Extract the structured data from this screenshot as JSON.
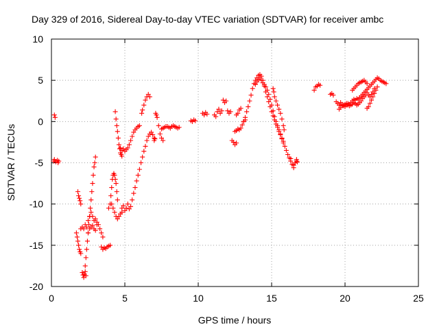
{
  "chart_data": {
    "type": "scatter",
    "title": "Day 329 of 2016, Sidereal Day-to-day VTEC variation (SDTVAR) for receiver ambc",
    "xlabel": "GPS time / hours",
    "ylabel": "SDTVAR / TECUs",
    "xlim": [
      0,
      25
    ],
    "ylim": [
      -20,
      10
    ],
    "xticks": [
      0,
      5,
      10,
      15,
      20,
      25
    ],
    "yticks": [
      -20,
      -15,
      -10,
      -5,
      0,
      5,
      10
    ],
    "grid": true,
    "marker": "plus",
    "color": "#ff0000",
    "series": [
      {
        "name": "SDTVAR",
        "segments": [
          {
            "x": [
              0.2,
              0.25
            ],
            "y": [
              0.8,
              0.5
            ]
          },
          {
            "x": [
              0.15,
              0.2,
              0.3,
              0.4,
              0.45,
              0.5
            ],
            "y": [
              -4.8,
              -4.6,
              -4.9,
              -4.7,
              -5.0,
              -4.8
            ]
          },
          {
            "x": [
              1.7,
              1.75,
              1.8,
              1.85,
              1.9,
              1.95,
              2.0
            ],
            "y": [
              -13.5,
              -14.0,
              -14.5,
              -15.0,
              -15.5,
              -15.8,
              -16.0
            ]
          },
          {
            "x": [
              1.8,
              1.85,
              1.9,
              1.95,
              2.0
            ],
            "y": [
              -8.5,
              -9.0,
              -9.3,
              -9.6,
              -10.0
            ]
          },
          {
            "x": [
              2.1,
              2.15,
              2.2,
              2.25,
              2.3,
              2.35
            ],
            "y": [
              -18.3,
              -18.6,
              -18.9,
              -18.5,
              -18.2,
              -18.7
            ]
          },
          {
            "x": [
              2.0,
              2.1,
              2.2,
              2.3,
              2.4,
              2.5,
              2.6
            ],
            "y": [
              -13.0,
              -12.8,
              -13.0,
              -12.5,
              -12.8,
              -12.0,
              -11.5
            ]
          },
          {
            "x": [
              2.3,
              2.35,
              2.4,
              2.45,
              2.5,
              2.55,
              2.6,
              2.65,
              2.7,
              2.75,
              2.8,
              2.85,
              2.9,
              2.95,
              3.0
            ],
            "y": [
              -17.5,
              -16.5,
              -15.5,
              -14.5,
              -13.5,
              -12.5,
              -11.5,
              -10.5,
              -9.5,
              -8.5,
              -7.5,
              -6.5,
              -5.5,
              -5.0,
              -4.3
            ]
          },
          {
            "x": [
              2.6,
              2.7,
              2.8,
              2.9,
              3.0,
              3.1,
              3.2,
              3.3,
              3.4,
              3.5
            ],
            "y": [
              -11.5,
              -11.0,
              -11.5,
              -12.0,
              -11.8,
              -12.2,
              -12.5,
              -13.0,
              -13.5,
              -14.0
            ]
          },
          {
            "x": [
              2.5,
              2.6,
              2.7,
              2.8,
              2.9,
              3.0,
              3.1
            ],
            "y": [
              -13.5,
              -13.0,
              -12.8,
              -12.6,
              -13.0,
              -13.2,
              -12.5
            ]
          },
          {
            "x": [
              3.4,
              3.5,
              3.6,
              3.7,
              3.8,
              3.9,
              4.0
            ],
            "y": [
              -15.2,
              -15.5,
              -15.3,
              -15.4,
              -15.2,
              -15.1,
              -15.0
            ]
          },
          {
            "x": [
              3.9,
              4.0,
              4.05,
              4.1,
              4.15,
              4.2,
              4.25,
              4.3,
              4.35,
              4.4,
              4.45,
              4.5
            ],
            "y": [
              -10.5,
              -10.0,
              -9.0,
              -8.0,
              -7.0,
              -6.5,
              -6.3,
              -6.5,
              -7.0,
              -7.5,
              -8.5,
              -9.5
            ]
          },
          {
            "x": [
              4.1,
              4.2,
              4.3,
              4.4,
              4.5,
              4.6,
              4.7,
              4.8
            ],
            "y": [
              -10.0,
              -10.5,
              -11.0,
              -11.5,
              -11.8,
              -11.5,
              -11.2,
              -11.0
            ]
          },
          {
            "x": [
              4.35,
              4.4,
              4.45,
              4.5,
              4.55,
              4.6,
              4.65,
              4.7,
              4.75,
              4.8
            ],
            "y": [
              1.2,
              0.3,
              -0.5,
              -1.2,
              -2.0,
              -2.8,
              -3.3,
              -3.8,
              -4.0,
              -4.2
            ]
          },
          {
            "x": [
              4.7,
              4.8,
              4.9,
              5.0,
              5.1,
              5.2,
              5.3,
              5.4,
              5.5,
              5.6,
              5.7,
              5.8,
              5.9,
              6.0
            ],
            "y": [
              -3.2,
              -3.5,
              -3.3,
              -3.6,
              -3.4,
              -3.2,
              -2.8,
              -2.3,
              -1.8,
              -1.3,
              -1.0,
              -0.8,
              -0.6,
              -0.5
            ]
          },
          {
            "x": [
              4.8,
              4.9,
              5.0,
              5.1,
              5.2,
              5.3,
              5.4,
              5.5,
              5.6,
              5.7,
              5.8,
              5.9,
              6.0,
              6.1,
              6.2,
              6.3,
              6.4,
              6.5,
              6.6,
              6.7,
              6.8,
              6.9,
              7.0
            ],
            "y": [
              -10.5,
              -10.2,
              -10.8,
              -10.5,
              -10.0,
              -10.6,
              -10.3,
              -9.5,
              -8.7,
              -8.0,
              -7.2,
              -6.5,
              -5.8,
              -5.0,
              -4.3,
              -3.6,
              -3.0,
              -2.3,
              -1.8,
              -1.5,
              -1.3,
              -1.6,
              -2.0
            ]
          },
          {
            "x": [
              6.15,
              6.2,
              6.3,
              6.4,
              6.5,
              6.6,
              6.7
            ],
            "y": [
              1.0,
              1.4,
              2.0,
              2.6,
              3.0,
              3.3,
              3.0
            ]
          },
          {
            "x": [
              7.0,
              7.05,
              7.1,
              7.15,
              7.2,
              7.3,
              7.4,
              7.5,
              7.6
            ],
            "y": [
              -2.3,
              -2.1,
              1.0,
              0.8,
              0.5,
              -0.5,
              -1.5,
              -2.0,
              -2.3
            ]
          },
          {
            "x": [
              7.5,
              7.6,
              7.7,
              7.8,
              7.9,
              8.0,
              8.1,
              8.2,
              8.3,
              8.4,
              8.5,
              8.6,
              8.7
            ],
            "y": [
              -0.9,
              -0.8,
              -0.7,
              -0.6,
              -0.6,
              -0.7,
              -0.8,
              -0.6,
              -0.5,
              -0.6,
              -0.7,
              -0.8,
              -0.7
            ]
          },
          {
            "x": [
              9.5,
              9.6,
              9.7,
              9.8
            ],
            "y": [
              0.1,
              0.0,
              0.2,
              0.1
            ]
          },
          {
            "x": [
              10.3,
              10.4,
              10.5,
              10.6
            ],
            "y": [
              1.0,
              0.8,
              1.1,
              0.9
            ]
          },
          {
            "x": [
              11.1,
              11.2,
              11.3,
              11.4,
              11.5,
              11.6
            ],
            "y": [
              0.8,
              0.6,
              1.2,
              1.5,
              1.0,
              1.3
            ]
          },
          {
            "x": [
              11.7,
              11.8,
              11.9
            ],
            "y": [
              2.6,
              2.3,
              2.5
            ]
          },
          {
            "x": [
              12.0,
              12.1,
              12.2
            ],
            "y": [
              1.3,
              1.0,
              1.2
            ]
          },
          {
            "x": [
              12.3,
              12.4,
              12.5,
              12.6
            ],
            "y": [
              -2.3,
              -2.5,
              -2.8,
              -2.6
            ]
          },
          {
            "x": [
              12.6,
              12.7,
              12.8,
              12.9
            ],
            "y": [
              0.8,
              1.0,
              1.4,
              1.6
            ]
          },
          {
            "x": [
              12.5,
              12.6,
              12.7,
              12.8,
              12.9,
              13.0,
              13.1,
              13.2
            ],
            "y": [
              -1.2,
              -1.1,
              -0.9,
              -1.0,
              -0.8,
              -0.4,
              0.0,
              0.2
            ]
          },
          {
            "x": [
              13.1,
              13.2,
              13.3,
              13.4,
              13.5,
              13.6,
              13.7,
              13.8,
              13.9,
              14.0,
              14.1,
              14.2,
              14.3,
              14.4,
              14.5,
              14.6,
              14.7,
              14.8,
              14.9,
              15.0,
              15.1,
              15.2,
              15.3,
              15.4,
              15.5,
              15.6,
              15.7,
              15.8,
              15.9,
              16.0,
              16.1,
              16.2,
              16.3,
              16.4,
              16.5,
              16.6,
              16.7
            ],
            "y": [
              0.0,
              0.5,
              1.2,
              1.8,
              2.5,
              3.2,
              4.0,
              4.6,
              5.0,
              5.3,
              5.6,
              5.7,
              5.5,
              5.0,
              4.3,
              3.6,
              3.0,
              2.4,
              1.8,
              1.2,
              0.7,
              0.2,
              -0.3,
              -0.7,
              -1.2,
              -1.6,
              -2.1,
              -2.6,
              -3.0,
              -3.5,
              -4.0,
              -4.4,
              -4.8,
              -5.2,
              -5.3,
              -5.0,
              -4.8
            ]
          },
          {
            "x": [
              13.9,
              14.0,
              14.1,
              14.2,
              14.3,
              14.4,
              14.5,
              14.6,
              14.7,
              14.8,
              14.9,
              15.0,
              15.1,
              15.2,
              15.3,
              15.4,
              15.5,
              15.6,
              15.7,
              15.8
            ],
            "y": [
              4.5,
              4.8,
              5.1,
              5.3,
              5.0,
              4.7,
              4.5,
              4.2,
              3.8,
              3.3,
              2.7,
              2.0,
              1.3,
              0.6,
              0.0,
              -0.5,
              -1.0,
              -1.5,
              -2.0,
              -2.4
            ]
          },
          {
            "x": [
              15.1,
              15.15,
              15.2,
              15.3,
              15.4,
              15.5,
              15.6,
              15.7,
              15.8,
              15.85
            ],
            "y": [
              4.0,
              3.6,
              3.0,
              2.5,
              2.0,
              1.5,
              1.0,
              0.3,
              -0.5,
              -1.0
            ]
          },
          {
            "x": [
              16.3,
              16.4,
              16.5,
              16.6,
              16.7,
              16.75
            ],
            "y": [
              -4.5,
              -5.2,
              -5.6,
              -5.0,
              -4.6,
              -4.9
            ]
          },
          {
            "x": [
              17.9,
              18.0,
              18.1,
              18.2,
              18.3
            ],
            "y": [
              3.8,
              4.2,
              4.3,
              4.5,
              4.4
            ]
          },
          {
            "x": [
              19.0,
              19.1,
              19.2
            ],
            "y": [
              3.3,
              3.4,
              3.2
            ]
          },
          {
            "x": [
              19.4,
              19.5,
              19.6,
              19.7,
              19.8,
              19.9,
              20.0,
              20.1,
              20.2,
              20.3,
              20.4,
              20.5,
              20.6,
              20.7,
              20.8,
              20.9,
              21.0,
              21.1,
              21.2,
              21.3,
              21.4,
              21.5,
              21.6,
              21.7,
              21.8,
              21.9,
              22.0,
              22.1,
              22.2,
              22.3,
              22.4,
              22.5,
              22.6,
              22.7,
              22.8
            ],
            "y": [
              2.4,
              2.2,
              2.0,
              2.3,
              2.1,
              1.9,
              1.8,
              2.0,
              2.2,
              2.1,
              2.3,
              2.5,
              2.7,
              2.6,
              2.8,
              2.7,
              2.9,
              3.1,
              3.3,
              3.5,
              3.7,
              3.9,
              4.1,
              4.3,
              4.5,
              4.7,
              4.9,
              5.1,
              5.3,
              5.2,
              5.0,
              4.9,
              4.8,
              4.7,
              4.6
            ]
          },
          {
            "x": [
              19.6,
              19.7,
              19.8,
              19.9,
              20.0,
              20.1,
              20.2,
              20.3,
              20.4,
              20.5,
              20.6,
              20.7,
              20.8,
              20.9,
              21.0,
              21.1,
              21.2,
              21.3,
              21.4,
              21.5,
              21.6,
              21.7,
              21.8,
              21.9,
              22.0
            ],
            "y": [
              1.5,
              1.7,
              1.9,
              2.0,
              2.1,
              2.2,
              2.0,
              1.9,
              2.0,
              2.1,
              2.3,
              2.2,
              2.0,
              2.1,
              2.3,
              2.5,
              2.8,
              3.0,
              3.2,
              3.5,
              3.2,
              3.0,
              3.3,
              3.6,
              4.0
            ]
          },
          {
            "x": [
              20.5,
              20.6,
              20.7,
              20.8,
              20.9,
              21.0,
              21.1,
              21.2,
              21.3,
              21.4,
              21.5
            ],
            "y": [
              3.8,
              4.0,
              4.2,
              4.4,
              4.6,
              4.7,
              4.8,
              4.9,
              5.0,
              4.8,
              4.6
            ]
          },
          {
            "x": [
              21.5,
              21.6,
              21.7,
              21.8,
              21.9,
              22.0,
              22.1,
              22.2
            ],
            "y": [
              1.6,
              1.8,
              2.2,
              2.6,
              3.0,
              3.4,
              3.8,
              4.2
            ]
          }
        ]
      }
    ]
  }
}
